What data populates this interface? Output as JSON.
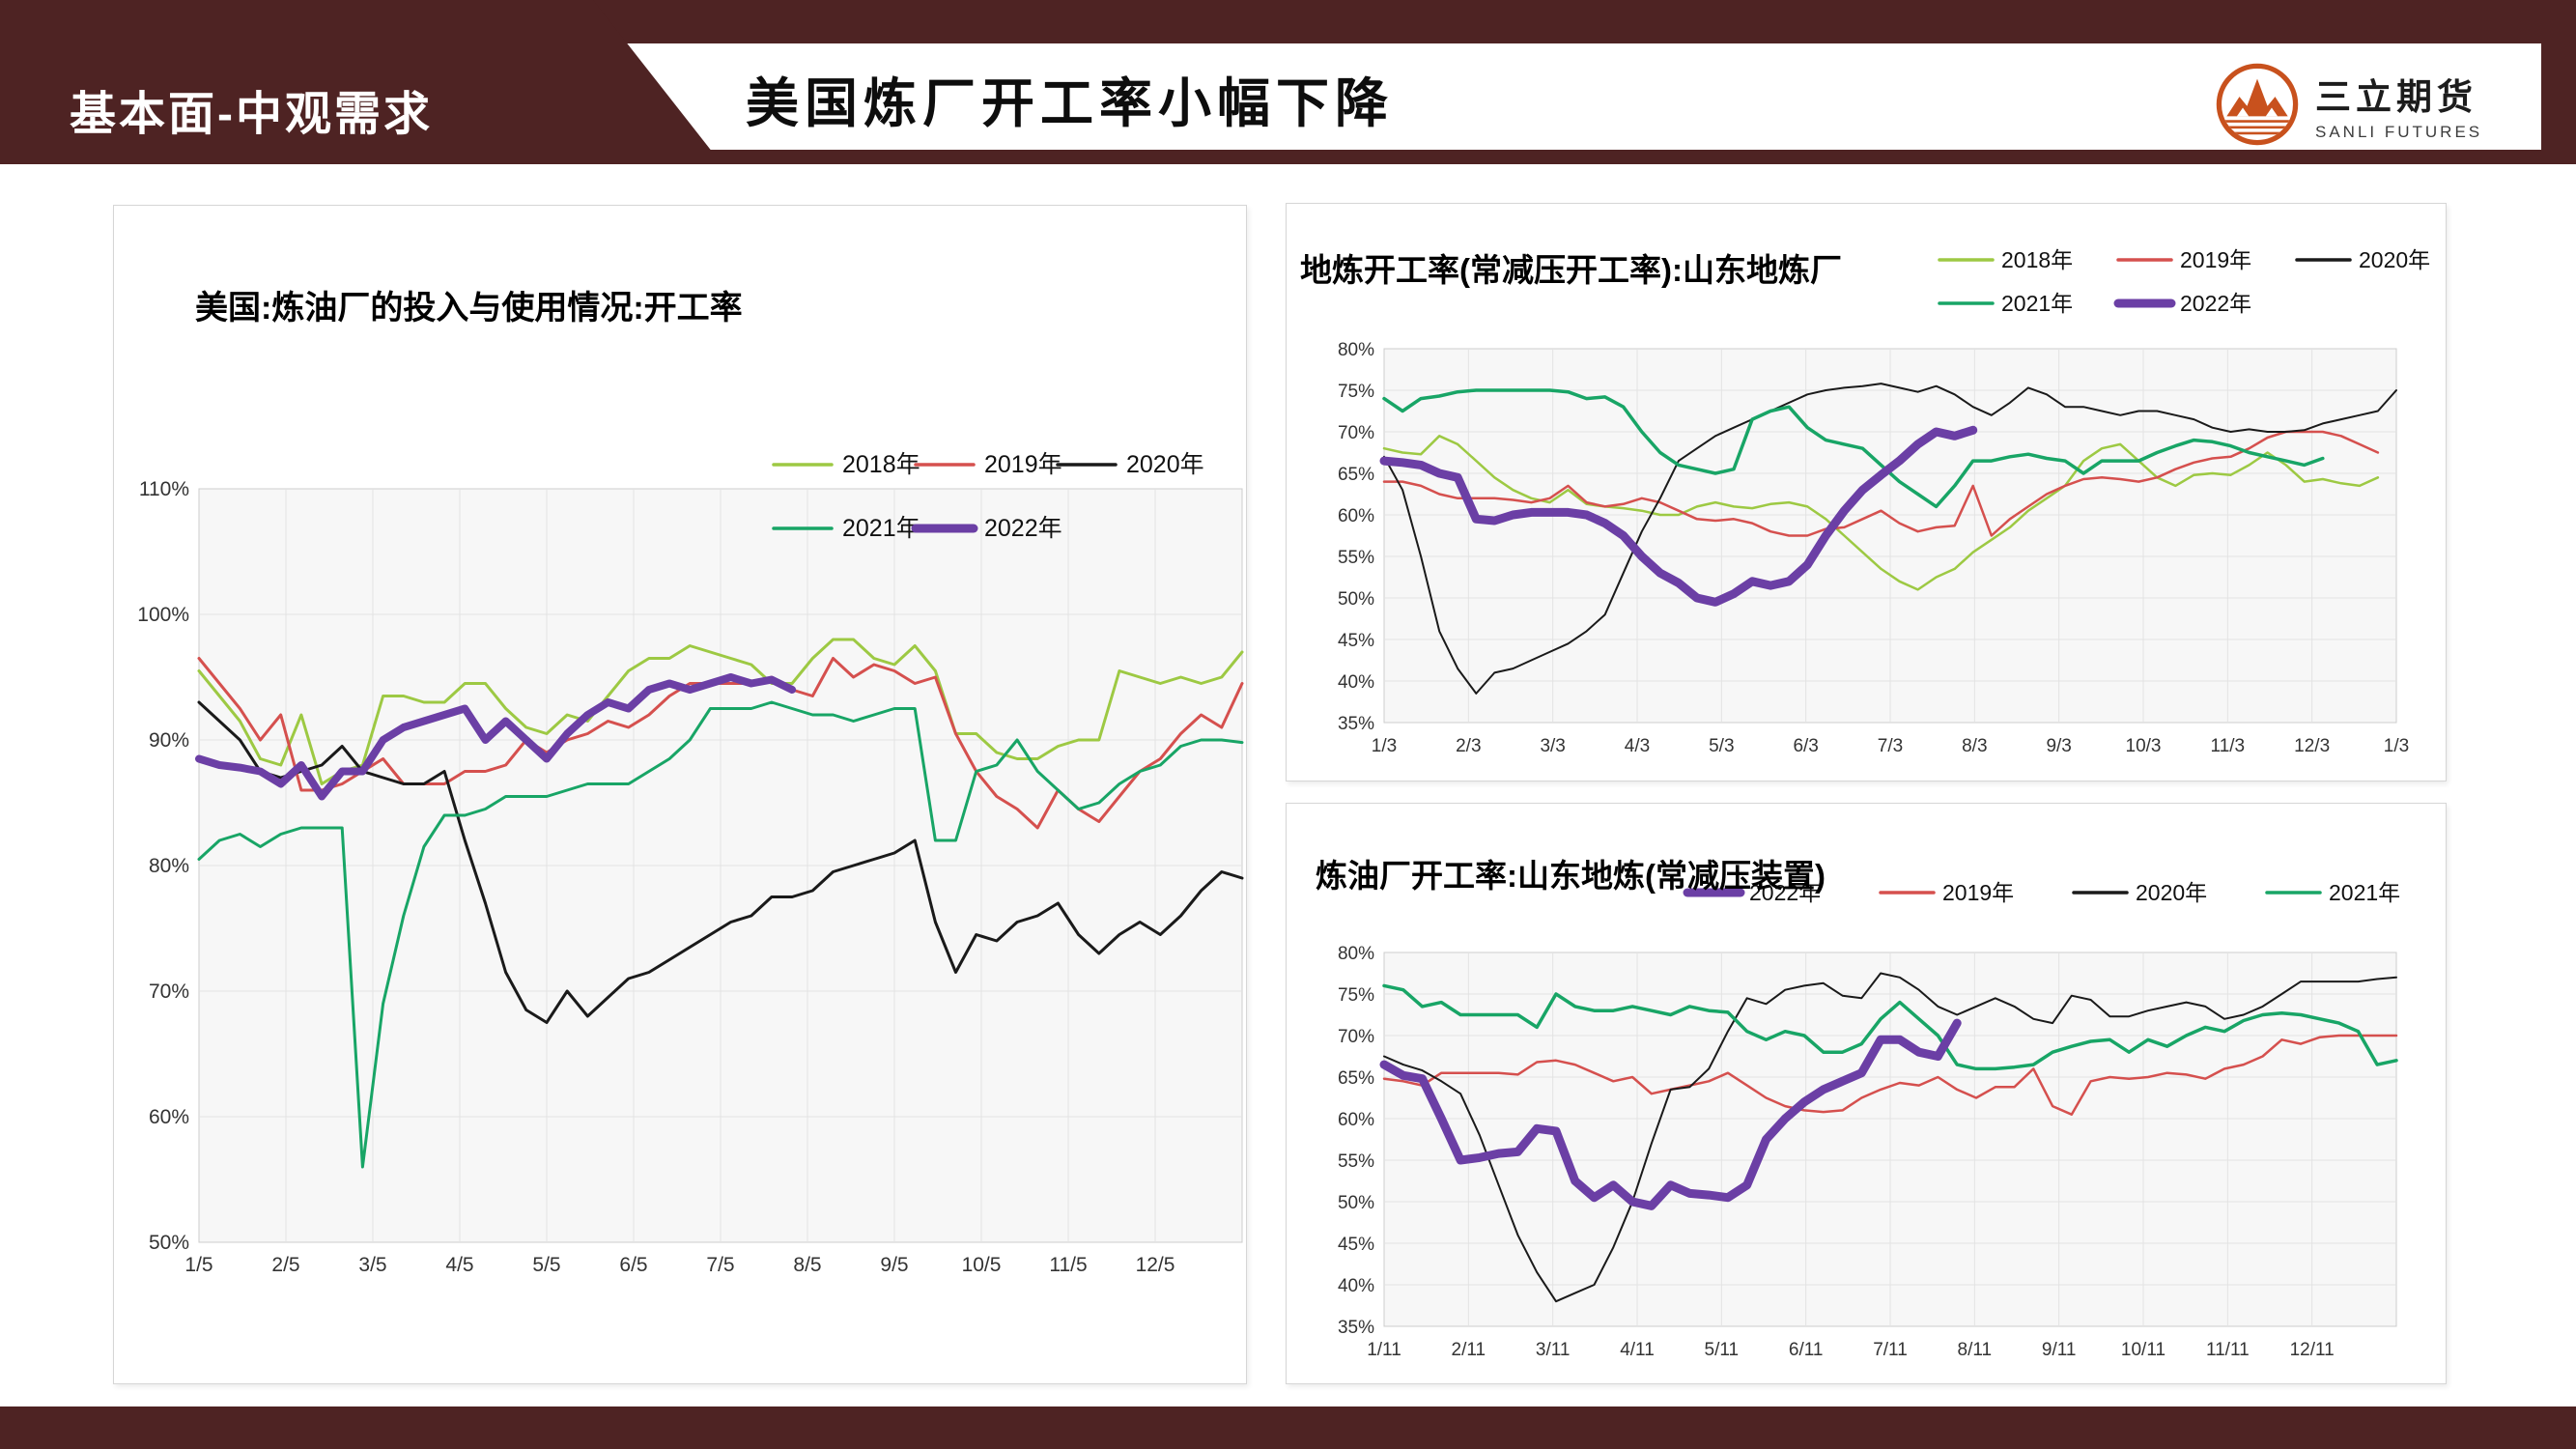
{
  "theme": {
    "maroon": "#4e2323",
    "logo_orange": "#c8511d",
    "plot_bg": "#f7f7f7",
    "grid_color": "#e3e3e3",
    "axis_text_color": "#333333"
  },
  "header": {
    "tab_label": "基本面-中观需求",
    "title": "美国炼厂开工率小幅下降",
    "logo": {
      "brand_cn": "三立期货",
      "brand_en": "SANLI FUTURES",
      "icon": "three-peaks-circle-icon",
      "color": "#c8511d"
    }
  },
  "chart_data": [
    {
      "type": "line",
      "title": "美国:炼油厂的投入与使用情况:开工率",
      "xlabel": "",
      "ylabel": "",
      "ylim": [
        50,
        110
      ],
      "ytick_step": 10,
      "y_ticks": [
        "110%",
        "100%",
        "90%",
        "80%",
        "70%",
        "60%",
        "50%"
      ],
      "x_labels": [
        "1/5",
        "2/5",
        "3/5",
        "4/5",
        "5/5",
        "6/5",
        "7/5",
        "8/5",
        "9/5",
        "10/5",
        "11/5",
        "12/5"
      ],
      "x_divisions": 12,
      "n_slots": 52,
      "grid": true,
      "legend_position": "top-right-two-rows",
      "legend_rows": [
        [
          "2018年",
          "2019年",
          "2020年"
        ],
        [
          "2021年",
          "2022年"
        ]
      ],
      "series": [
        {
          "name": "2018年",
          "color": "#9dc943",
          "width": 3,
          "values": [
            95.5,
            93.5,
            91.5,
            88.5,
            88,
            92,
            86.5,
            87.5,
            88,
            93.5,
            93.5,
            93,
            93,
            94.5,
            94.5,
            92.5,
            91,
            90.5,
            92,
            91.5,
            93.5,
            95.5,
            96.5,
            96.5,
            97.5,
            97,
            96.5,
            96,
            94.5,
            94.5,
            96.5,
            98,
            98,
            96.5,
            96,
            97.5,
            95.5,
            90.5,
            90.5,
            89,
            88.5,
            88.5,
            89.5,
            90,
            90,
            95.5,
            95,
            94.5,
            95,
            94.5,
            95,
            97
          ]
        },
        {
          "name": "2019年",
          "color": "#d5504e",
          "width": 3,
          "values": [
            96.5,
            94.5,
            92.5,
            90,
            92,
            86,
            86,
            86.5,
            87.5,
            88.5,
            86.5,
            86.5,
            86.5,
            87.5,
            87.5,
            88,
            90,
            89,
            90,
            90.5,
            91.5,
            91,
            92,
            93.5,
            94.5,
            94.5,
            94.5,
            94.5,
            95,
            94,
            93.5,
            96.5,
            95,
            96,
            95.5,
            94.5,
            95,
            90.5,
            87.5,
            85.5,
            84.5,
            83,
            86,
            84.5,
            83.5,
            85.5,
            87.5,
            88.5,
            90.5,
            92,
            91,
            94.5
          ]
        },
        {
          "name": "2020年",
          "color": "#1a1a1a",
          "width": 3,
          "values": [
            93,
            91.5,
            90,
            87.5,
            87,
            87.5,
            88,
            89.5,
            87.5,
            87,
            86.5,
            86.5,
            87.5,
            82,
            77,
            71.5,
            68.5,
            67.5,
            70,
            68,
            69.5,
            71,
            71.5,
            72.5,
            73.5,
            74.5,
            75.5,
            76,
            77.5,
            77.5,
            78,
            79.5,
            80,
            80.5,
            81,
            82,
            75.5,
            71.5,
            74.5,
            74,
            75.5,
            76,
            77,
            74.5,
            73,
            74.5,
            75.5,
            74.5,
            76,
            78,
            79.5,
            79
          ]
        },
        {
          "name": "2021年",
          "color": "#18a566",
          "width": 3,
          "values": [
            80.5,
            82,
            82.5,
            81.5,
            82.5,
            83,
            83,
            83,
            56,
            69,
            76,
            81.5,
            84,
            84,
            84.5,
            85.5,
            85.5,
            85.5,
            86,
            86.5,
            86.5,
            86.5,
            87.5,
            88.5,
            90,
            92.5,
            92.5,
            92.5,
            93,
            92.5,
            92,
            92,
            91.5,
            92,
            92.5,
            92.5,
            82,
            82,
            87.5,
            88,
            90,
            87.5,
            86,
            84.5,
            85,
            86.5,
            87.5,
            88,
            89.5,
            90,
            90,
            89.8
          ]
        },
        {
          "name": "2022年",
          "color": "#6b3fa5",
          "width": 8,
          "values": [
            88.5,
            88,
            87.8,
            87.5,
            86.5,
            88,
            85.5,
            87.5,
            87.5,
            90,
            91,
            91.5,
            92,
            92.5,
            90,
            91.5,
            90,
            88.5,
            90.5,
            92,
            93,
            92.5,
            94,
            94.5,
            94,
            94.5,
            95,
            94.5,
            94.8,
            94
          ]
        }
      ]
    },
    {
      "type": "line",
      "title": "地炼开工率(常减压开工率):山东地炼厂",
      "xlabel": "",
      "ylabel": "",
      "ylim": [
        35,
        80
      ],
      "ytick_step": 5,
      "y_ticks": [
        "80%",
        "75%",
        "70%",
        "65%",
        "60%",
        "55%",
        "50%",
        "45%",
        "40%",
        "35%"
      ],
      "x_labels": [
        "1/3",
        "2/3",
        "3/3",
        "4/3",
        "5/3",
        "6/3",
        "7/3",
        "8/3",
        "9/3",
        "10/3",
        "11/3",
        "12/3",
        "1/3"
      ],
      "x_divisions": 12,
      "n_slots": 56,
      "grid": true,
      "legend_position": "top-right-two-rows",
      "legend_rows": [
        [
          "2018年",
          "2019年",
          "2020年"
        ],
        [
          "2021年",
          "2022年"
        ]
      ],
      "series": [
        {
          "name": "2018年",
          "color": "#9dc943",
          "width": 2.5,
          "values": [
            68,
            67.5,
            67.3,
            69.5,
            68.5,
            66.5,
            64.5,
            63,
            62,
            61.5,
            63,
            61.3,
            61,
            60.8,
            60.5,
            60,
            60,
            61,
            61.5,
            61,
            60.8,
            61.3,
            61.5,
            61,
            59.5,
            57.5,
            55.5,
            53.5,
            52,
            51,
            52.5,
            53.5,
            55.5,
            57,
            58.5,
            60.5,
            62,
            63.5,
            66.5,
            68,
            68.5,
            66.5,
            64.5,
            63.5,
            64.8,
            65,
            64.8,
            66,
            67.5,
            66,
            64,
            64.3,
            63.8,
            63.5,
            64.5
          ]
        },
        {
          "name": "2019年",
          "color": "#d5504e",
          "width": 2.5,
          "values": [
            64,
            64,
            63.5,
            62.5,
            62,
            62,
            62,
            61.8,
            61.5,
            62,
            63.5,
            61.5,
            61,
            61.3,
            62,
            61.5,
            60.5,
            59.5,
            59.3,
            59.5,
            59,
            58,
            57.5,
            57.5,
            58.3,
            58.5,
            59.5,
            60.5,
            59,
            58,
            58.5,
            58.7,
            63.5,
            57.5,
            59.5,
            61,
            62.5,
            63.5,
            64.3,
            64.5,
            64.3,
            64,
            64.5,
            65.5,
            66.3,
            66.8,
            67,
            68,
            69.3,
            70,
            70,
            70,
            69.5,
            68.5,
            67.5
          ]
        },
        {
          "name": "2020年",
          "color": "#1a1a1a",
          "width": 2,
          "values": [
            67,
            63,
            55,
            46,
            41.5,
            38.5,
            41,
            41.5,
            42.5,
            43.5,
            44.5,
            46,
            48,
            53,
            58,
            62,
            66.5,
            68,
            69.5,
            70.5,
            71.5,
            72.5,
            73.5,
            74.5,
            75,
            75.3,
            75.5,
            75.8,
            75.3,
            74.8,
            75.5,
            74.5,
            73,
            72,
            73.5,
            75.3,
            74.5,
            73,
            73,
            72.5,
            72,
            72.5,
            72.5,
            72,
            71.5,
            70.5,
            70,
            70.3,
            70,
            70,
            70.2,
            71,
            71.5,
            72,
            72.5,
            75
          ]
        },
        {
          "name": "2021年",
          "color": "#18a566",
          "width": 3.5,
          "values": [
            74,
            72.5,
            74,
            74.3,
            74.8,
            75,
            75,
            75,
            75,
            75,
            74.8,
            74,
            74.2,
            73,
            70,
            67.5,
            66,
            65.5,
            65,
            65.5,
            71.5,
            72.5,
            73,
            70.5,
            69,
            68.5,
            68,
            66,
            64,
            62.5,
            61,
            63.5,
            66.5,
            66.5,
            67,
            67.3,
            66.8,
            66.5,
            65,
            66.5,
            66.5,
            66.5,
            67.5,
            68.3,
            69,
            68.8,
            68.3,
            67.5,
            67,
            66.5,
            66,
            66.8
          ]
        },
        {
          "name": "2022年",
          "color": "#6b3fa5",
          "width": 9,
          "values": [
            66.5,
            66.3,
            66,
            65,
            64.5,
            59.5,
            59.3,
            60,
            60.3,
            60.3,
            60.3,
            60,
            59,
            57.5,
            55,
            53,
            51.8,
            50,
            49.5,
            50.5,
            52,
            51.5,
            52,
            54,
            57.5,
            60.5,
            63,
            64.8,
            66.5,
            68.5,
            70,
            69.5,
            70.2
          ]
        }
      ]
    },
    {
      "type": "line",
      "title": "炼油厂开工率:山东地炼(常减压装置)",
      "xlabel": "",
      "ylabel": "",
      "ylim": [
        35,
        80
      ],
      "ytick_step": 5,
      "y_ticks": [
        "80%",
        "75%",
        "70%",
        "65%",
        "60%",
        "55%",
        "50%",
        "45%",
        "40%",
        "35%"
      ],
      "x_labels": [
        "1/11",
        "2/11",
        "3/11",
        "4/11",
        "5/11",
        "6/11",
        "7/11",
        "8/11",
        "9/11",
        "10/11",
        "11/11",
        "12/11"
      ],
      "x_divisions": 12,
      "n_slots": 54,
      "grid": true,
      "legend_position": "top-right-single-row",
      "legend_rows": [
        [
          "2022年",
          "2019年",
          "2020年",
          "2021年"
        ]
      ],
      "series": [
        {
          "name": "2019年",
          "color": "#d5504e",
          "width": 2.5,
          "values": [
            64.8,
            64.5,
            64,
            65.5,
            65.5,
            65.5,
            65.5,
            65.3,
            66.8,
            67,
            66.5,
            65.5,
            64.5,
            65,
            63,
            63.5,
            64,
            64.5,
            65.5,
            64,
            62.5,
            61.5,
            61,
            60.8,
            61,
            62.5,
            63.5,
            64.3,
            64,
            65,
            63.5,
            62.5,
            63.8,
            63.8,
            66,
            61.5,
            60.5,
            64.5,
            65,
            64.8,
            65,
            65.5,
            65.3,
            64.8,
            66,
            66.5,
            67.5,
            69.5,
            69,
            69.8,
            70,
            70,
            70,
            70
          ]
        },
        {
          "name": "2020年",
          "color": "#1a1a1a",
          "width": 2,
          "values": [
            67.5,
            66.5,
            65.8,
            64.5,
            63,
            58,
            52,
            46,
            41.5,
            38,
            39,
            40,
            44.5,
            50,
            57,
            63.5,
            63.8,
            66,
            70.5,
            74.5,
            73.8,
            75.5,
            76,
            76.3,
            74.8,
            74.5,
            77.5,
            77,
            75.5,
            73.5,
            72.5,
            73.5,
            74.5,
            73.5,
            72,
            71.5,
            74.8,
            74.3,
            72.3,
            72.3,
            73,
            73.5,
            74,
            73.5,
            72,
            72.5,
            73.5,
            75,
            76.5,
            76.5,
            76.5,
            76.5,
            76.8,
            77
          ]
        },
        {
          "name": "2021年",
          "color": "#18a566",
          "width": 3.5,
          "values": [
            76,
            75.5,
            73.5,
            74,
            72.5,
            72.5,
            72.5,
            72.5,
            71,
            75,
            73.5,
            73,
            73,
            73.5,
            73,
            72.5,
            73.5,
            73,
            72.8,
            70.5,
            69.5,
            70.5,
            70,
            68,
            68,
            69,
            72,
            74,
            72,
            70,
            66.5,
            66,
            66,
            66.2,
            66.5,
            68,
            68.7,
            69.3,
            69.5,
            68,
            69.5,
            68.7,
            70,
            71,
            70.5,
            71.8,
            72.5,
            72.7,
            72.5,
            72,
            71.5,
            70.5,
            66.5,
            67
          ]
        },
        {
          "name": "2022年",
          "color": "#6b3fa5",
          "width": 9,
          "values": [
            66.5,
            65.2,
            64.8,
            60,
            55,
            55.3,
            55.8,
            56,
            58.8,
            58.5,
            52.5,
            50.5,
            52,
            50,
            49.5,
            52,
            51,
            50.8,
            50.5,
            52,
            57.5,
            60,
            62,
            63.5,
            64.5,
            65.5,
            69.5,
            69.5,
            68,
            67.5,
            71.5
          ]
        }
      ]
    }
  ]
}
